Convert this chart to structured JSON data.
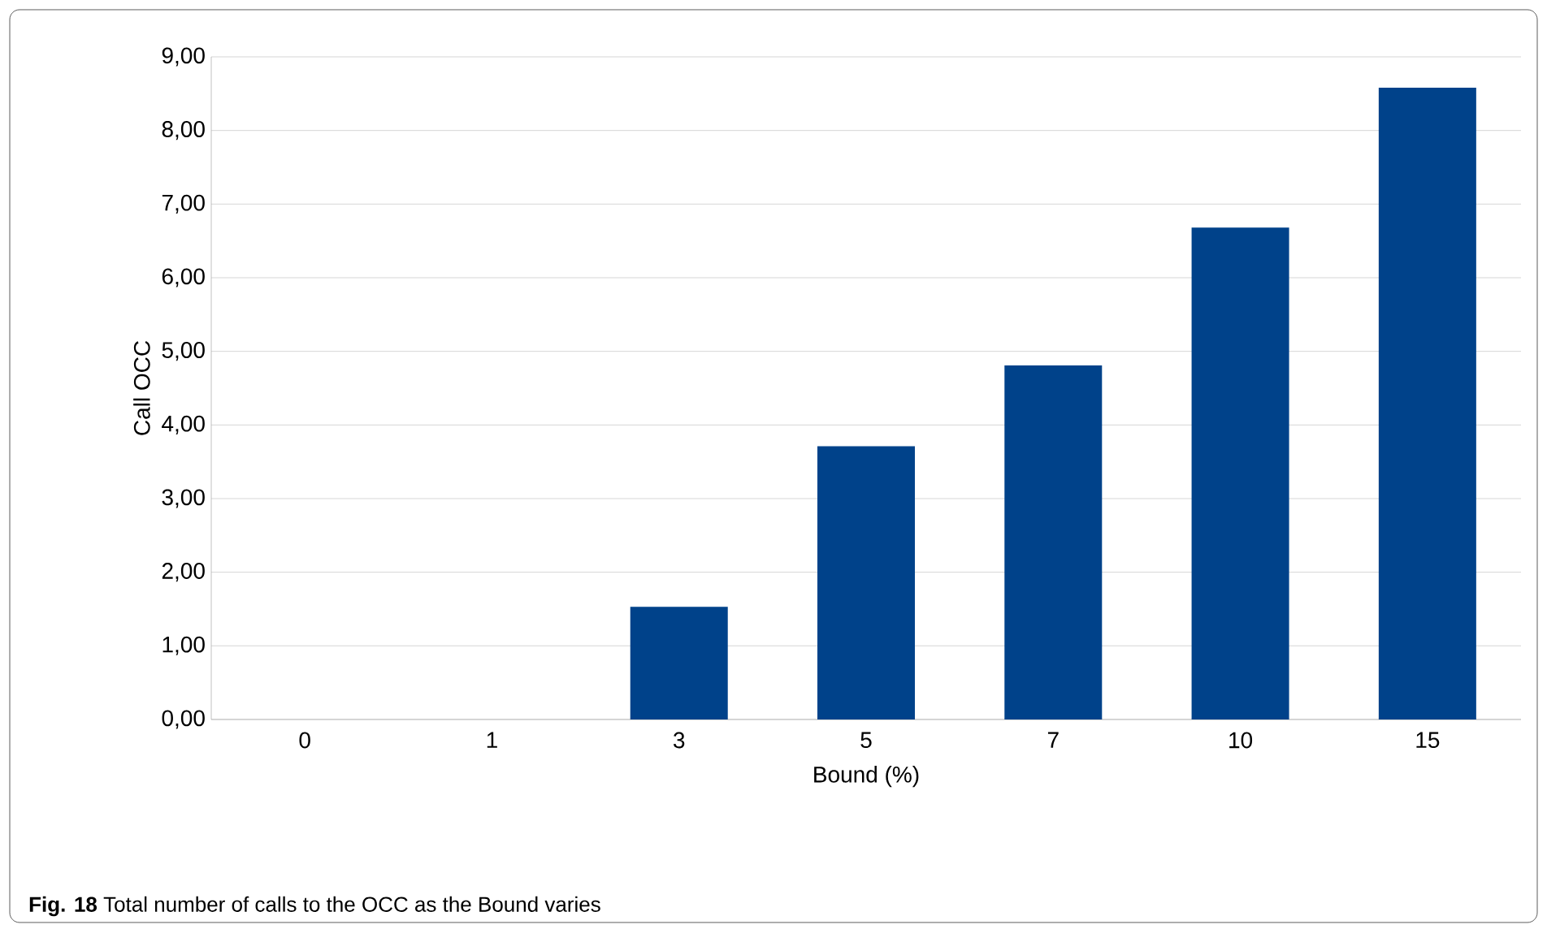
{
  "chart_data": {
    "type": "bar",
    "xlabel": "Bound (%)",
    "ylabel": "Call OCC",
    "categories": [
      "0",
      "1",
      "3",
      "5",
      "7",
      "10",
      "15"
    ],
    "values": [
      0,
      0,
      1.53,
      3.71,
      4.81,
      6.68,
      8.58
    ],
    "color": "#00428a",
    "ylim": [
      0,
      9
    ],
    "yticks": [
      {
        "value": 0,
        "label": "0,00"
      },
      {
        "value": 1,
        "label": "1,00"
      },
      {
        "value": 2,
        "label": "2,00"
      },
      {
        "value": 3,
        "label": "3,00"
      },
      {
        "value": 4,
        "label": "4,00"
      },
      {
        "value": 5,
        "label": "5,00"
      },
      {
        "value": 6,
        "label": "6,00"
      },
      {
        "value": 7,
        "label": "7,00"
      },
      {
        "value": 8,
        "label": "8,00"
      },
      {
        "value": 9,
        "label": "9,00"
      }
    ],
    "grid": "y",
    "annotations": [
      "**Fig. 18**  Total number of calls to the OCC as the Bound varies"
    ]
  }
}
